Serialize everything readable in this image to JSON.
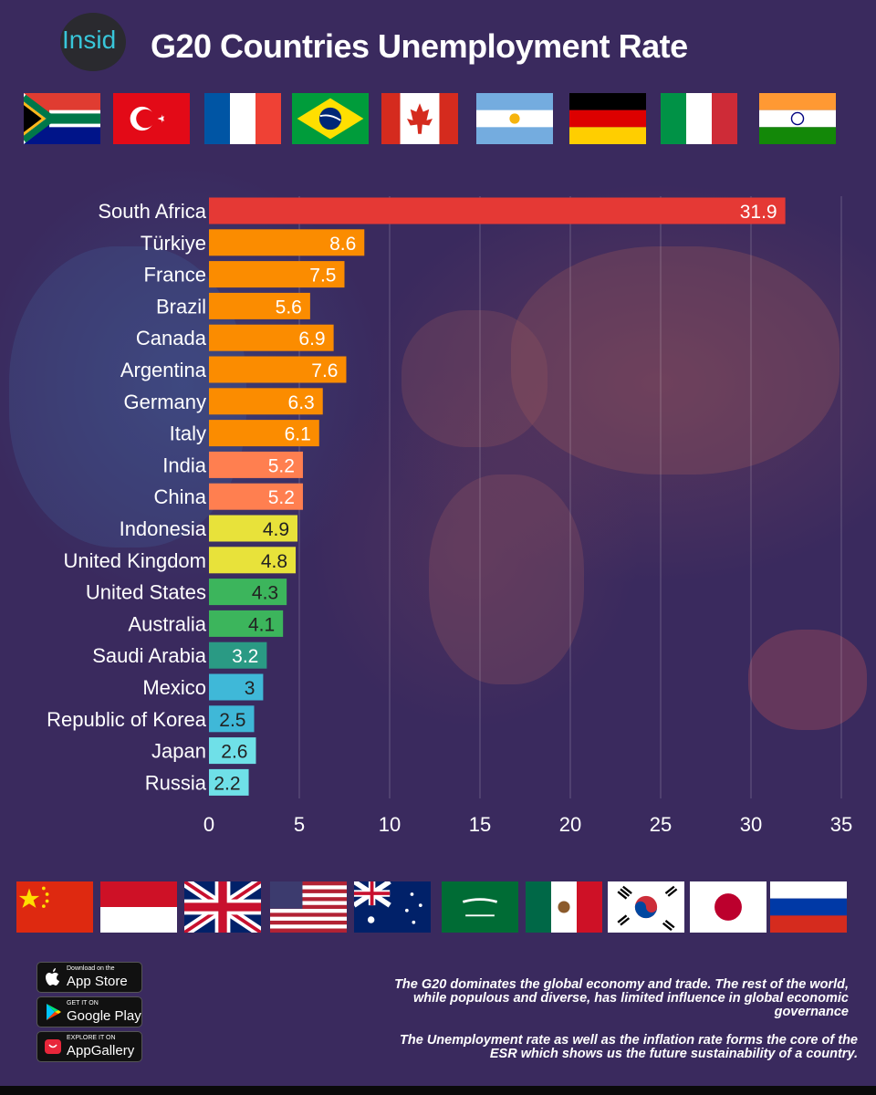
{
  "header": {
    "logo_text": "Insid",
    "title": "G20 Countries Unemployment Rate"
  },
  "flags_top": [
    "South Africa flag",
    "Türkiye flag",
    "France flag",
    "Brazil flag",
    "Canada flag",
    "Argentina flag",
    "Germany flag",
    "Italy flag",
    "India flag"
  ],
  "flags_bottom": [
    "China flag",
    "Indonesia flag",
    "United Kingdom flag",
    "United States flag",
    "Australia flag",
    "Saudi Arabia flag",
    "Mexico flag",
    "Republic of Korea flag",
    "Japan flag",
    "Russia flag"
  ],
  "chart_data": {
    "type": "bar",
    "orientation": "horizontal",
    "title": "G20 Countries Unemployment Rate",
    "categories": [
      "South Africa",
      "Türkiye",
      "France",
      "Brazil",
      "Canada",
      "Argentina",
      "Germany",
      "Italy",
      "India",
      "China",
      "Indonesia",
      "United Kingdom",
      "United States",
      "Australia",
      "Saudi Arabia",
      "Mexico",
      "Republic of Korea",
      "Japan",
      "Russia"
    ],
    "values": [
      31.9,
      8.6,
      7.5,
      5.6,
      6.9,
      7.6,
      6.3,
      6.1,
      5.2,
      5.2,
      4.9,
      4.8,
      4.3,
      4.1,
      3.2,
      3,
      2.5,
      2.6,
      2.2
    ],
    "value_labels": [
      "31.9",
      "8.6",
      "7.5",
      "5.6",
      "6.9",
      "7.6",
      "6.3",
      "6.1",
      "5.2",
      "5.2",
      "4.9",
      "4.8",
      "4.3",
      "4.1",
      "3.2",
      "3",
      "2.5",
      "2.6",
      "2.2"
    ],
    "bar_colors": [
      "#e53935",
      "#fb8c00",
      "#fb8c00",
      "#fb8c00",
      "#fb8c00",
      "#fb8c00",
      "#fb8c00",
      "#fb8c00",
      "#ff7f50",
      "#ff7f50",
      "#e8e23a",
      "#e8e23a",
      "#3cb55c",
      "#3cb55c",
      "#2a9a84",
      "#3fb8d8",
      "#3fb8d8",
      "#6fe0e8",
      "#6fe0e8"
    ],
    "label_colors": [
      "#ffffff",
      "#ffffff",
      "#ffffff",
      "#ffffff",
      "#ffffff",
      "#ffffff",
      "#ffffff",
      "#ffffff",
      "#ffffff",
      "#ffffff",
      "#222222",
      "#222222",
      "#222222",
      "#222222",
      "#ffffff",
      "#222222",
      "#222222",
      "#222222",
      "#222222"
    ],
    "xlim": [
      0,
      35
    ],
    "xticks": [
      0,
      5,
      10,
      15,
      20,
      25,
      30,
      35
    ],
    "grid": true,
    "xlabel": "",
    "ylabel": ""
  },
  "stores": [
    {
      "small": "Download on the",
      "big": "App Store"
    },
    {
      "small": "GET IT ON",
      "big": "Google Play"
    },
    {
      "small": "EXPLORE IT ON",
      "big": "AppGallery"
    }
  ],
  "notes": {
    "note1": "The G20 dominates the global economy and trade. The rest of the world, while populous and diverse, has limited influence in global economic governance",
    "note2": "The Unemployment rate  as well as the inflation rate forms the core of the ESR which shows us the future sustainability of a country."
  }
}
